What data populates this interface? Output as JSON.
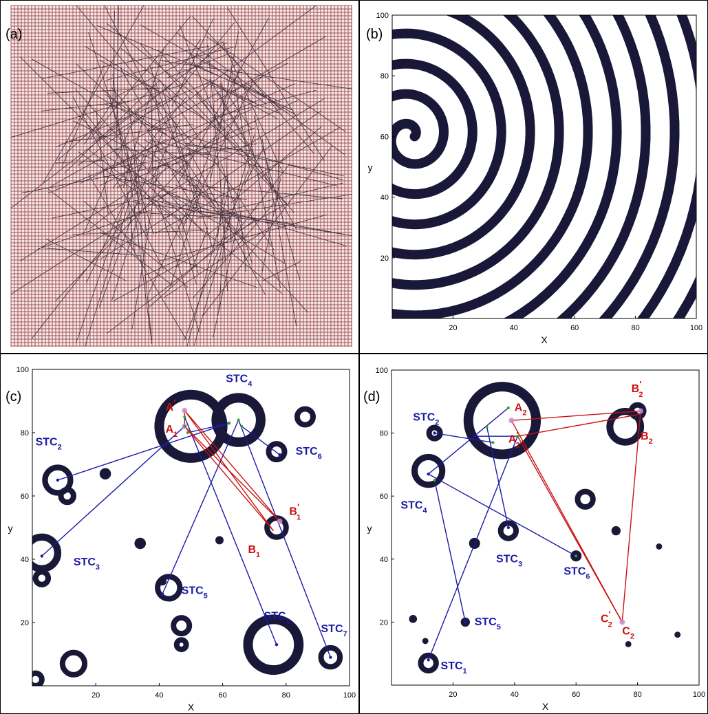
{
  "panels": {
    "a": {
      "label": "(a)"
    },
    "b": {
      "label": "(b)"
    },
    "c": {
      "label": "(c)"
    },
    "d": {
      "label": "(d)"
    }
  },
  "colors": {
    "lattice": "#8b1c1c",
    "pattern": "#1a1838",
    "stc_line": "#1a1aa8",
    "triangle": "#cc1111",
    "tip_trace": "#d08ad0",
    "marker": "#22aa22"
  },
  "chart_data": [
    {
      "panel": "a",
      "type": "network",
      "description_visible": "lattice with random long-range links",
      "grid": true
    },
    {
      "panel": "b",
      "type": "heatmap",
      "pattern": "spiral",
      "xlabel": "X",
      "ylabel": "y",
      "xlim": [
        0,
        100
      ],
      "ylim": [
        0,
        100
      ],
      "xticks": [
        20,
        40,
        60,
        80,
        100
      ],
      "yticks": [
        20,
        40,
        60,
        80,
        100
      ],
      "spiral_center": [
        6,
        60
      ]
    },
    {
      "panel": "c",
      "type": "scatter",
      "xlabel": "X",
      "ylabel": "y",
      "xlim": [
        0,
        100
      ],
      "ylim": [
        0,
        100
      ],
      "xticks": [
        20,
        40,
        60,
        80,
        100
      ],
      "yticks": [
        20,
        40,
        60,
        80,
        100
      ],
      "rings": [
        {
          "x": 50,
          "y": 82,
          "r": 10
        },
        {
          "x": 65,
          "y": 84,
          "r": 7
        },
        {
          "x": 76,
          "y": 13,
          "r": 8
        },
        {
          "x": 3,
          "y": 42,
          "r": 5
        },
        {
          "x": 8,
          "y": 65,
          "r": 4
        },
        {
          "x": 13,
          "y": 7,
          "r": 3.5
        },
        {
          "x": 43,
          "y": 31,
          "r": 3.5
        },
        {
          "x": 77,
          "y": 50,
          "r": 3
        },
        {
          "x": 94,
          "y": 9,
          "r": 3
        },
        {
          "x": 11,
          "y": 60,
          "r": 2
        },
        {
          "x": 47,
          "y": 19,
          "r": 2.5
        },
        {
          "x": 86,
          "y": 85,
          "r": 2.5
        },
        {
          "x": 77,
          "y": 74,
          "r": 2.5
        },
        {
          "x": 3,
          "y": 34,
          "r": 2
        },
        {
          "x": 47,
          "y": 13,
          "r": 1.5
        },
        {
          "x": 1,
          "y": 2,
          "r": 2
        }
      ],
      "blobs": [
        {
          "x": 23,
          "y": 67,
          "r": 1.8
        },
        {
          "x": 34,
          "y": 45,
          "r": 1.8
        },
        {
          "x": 59,
          "y": 46,
          "r": 1.3
        },
        {
          "x": 41,
          "y": 33,
          "r": 1.3
        }
      ],
      "stc_points": [
        {
          "name": "STC",
          "sub": "1",
          "x": 77,
          "y": 13
        },
        {
          "name": "STC",
          "sub": "2",
          "x": 8,
          "y": 65
        },
        {
          "name": "STC",
          "sub": "3",
          "x": 3,
          "y": 41
        },
        {
          "name": "STC",
          "sub": "4",
          "x": 62,
          "y": 83
        },
        {
          "name": "STC",
          "sub": "5",
          "x": 41,
          "y": 29
        },
        {
          "name": "STC",
          "sub": "6",
          "x": 78,
          "y": 73
        },
        {
          "name": "STC",
          "sub": "7",
          "x": 94,
          "y": 9
        }
      ],
      "stc_labels": [
        {
          "name": "STC",
          "sub": "1",
          "x": 73,
          "y": 21
        },
        {
          "name": "STC",
          "sub": "2",
          "x": 1,
          "y": 76
        },
        {
          "name": "STC",
          "sub": "3",
          "x": 13,
          "y": 38
        },
        {
          "name": "STC",
          "sub": "4",
          "x": 61,
          "y": 96
        },
        {
          "name": "STC",
          "sub": "5",
          "x": 47,
          "y": 29
        },
        {
          "name": "STC",
          "sub": "6",
          "x": 83,
          "y": 73
        },
        {
          "name": "STC",
          "sub": "7",
          "x": 91,
          "y": 17
        }
      ],
      "blue_links": [
        [
          {
            "x": 8,
            "y": 65
          },
          {
            "x": 62,
            "y": 83
          }
        ],
        [
          {
            "x": 3,
            "y": 41
          },
          {
            "x": 48,
            "y": 82
          }
        ],
        [
          {
            "x": 41,
            "y": 29
          },
          {
            "x": 65,
            "y": 84
          }
        ],
        [
          {
            "x": 77,
            "y": 13
          },
          {
            "x": 48,
            "y": 85
          }
        ],
        [
          {
            "x": 94,
            "y": 9
          },
          {
            "x": 65,
            "y": 84
          }
        ],
        [
          {
            "x": 78,
            "y": 73
          },
          {
            "x": 66,
            "y": 82
          }
        ],
        [
          {
            "x": 62,
            "y": 83
          },
          {
            "x": 49,
            "y": 80
          }
        ]
      ],
      "triangle": [
        {
          "x": 48,
          "y": 87
        },
        {
          "x": 78,
          "y": 52
        },
        {
          "x": 48,
          "y": 82
        }
      ],
      "triangle_extra": [
        [
          {
            "x": 48,
            "y": 87
          },
          {
            "x": 76,
            "y": 49
          }
        ],
        [
          {
            "x": 48,
            "y": 82
          },
          {
            "x": 76,
            "y": 49
          }
        ]
      ],
      "point_labels": [
        {
          "text": "A",
          "sup": "'",
          "sub": "",
          "x": 42,
          "y": 87
        },
        {
          "text": "A",
          "sup": "",
          "sub": "1",
          "x": 42,
          "y": 80
        },
        {
          "text": "B",
          "sup": "'",
          "sub": "1",
          "x": 81,
          "y": 54
        },
        {
          "text": "B",
          "sup": "",
          "sub": "1",
          "x": 68,
          "y": 42
        }
      ]
    },
    {
      "panel": "d",
      "type": "scatter",
      "xlabel": "X",
      "ylabel": "y",
      "xlim": [
        0,
        100
      ],
      "ylim": [
        0,
        100
      ],
      "xticks": [
        20,
        40,
        60,
        80,
        100
      ],
      "yticks": [
        20,
        40,
        60,
        80,
        100
      ],
      "rings": [
        {
          "x": 36,
          "y": 84,
          "r": 11
        },
        {
          "x": 76,
          "y": 82,
          "r": 5
        },
        {
          "x": 12,
          "y": 68,
          "r": 4.5
        },
        {
          "x": 38,
          "y": 49,
          "r": 2.5
        },
        {
          "x": 12,
          "y": 7,
          "r": 2.5
        },
        {
          "x": 63,
          "y": 59,
          "r": 2.5
        },
        {
          "x": 14,
          "y": 80,
          "r": 1.8
        },
        {
          "x": 80,
          "y": 87,
          "r": 2
        }
      ],
      "blobs": [
        {
          "x": 27,
          "y": 45,
          "r": 1.8
        },
        {
          "x": 24,
          "y": 20,
          "r": 1.5
        },
        {
          "x": 60,
          "y": 41,
          "r": 1.8
        },
        {
          "x": 73,
          "y": 49,
          "r": 1.5
        },
        {
          "x": 7,
          "y": 21,
          "r": 1.3
        },
        {
          "x": 11,
          "y": 14,
          "r": 1
        },
        {
          "x": 93,
          "y": 16,
          "r": 1
        },
        {
          "x": 77,
          "y": 13,
          "r": 1
        },
        {
          "x": 87,
          "y": 44,
          "r": 1
        }
      ],
      "stc_points": [
        {
          "name": "STC",
          "sub": "1",
          "x": 12,
          "y": 8
        },
        {
          "name": "STC",
          "sub": "2",
          "x": 14,
          "y": 80
        },
        {
          "name": "STC",
          "sub": "3",
          "x": 38,
          "y": 50
        },
        {
          "name": "STC",
          "sub": "4",
          "x": 12,
          "y": 67
        },
        {
          "name": "STC",
          "sub": "5",
          "x": 24,
          "y": 20
        },
        {
          "name": "STC",
          "sub": "6",
          "x": 60,
          "y": 41
        }
      ],
      "stc_labels": [
        {
          "name": "STC",
          "sub": "1",
          "x": 16,
          "y": 5
        },
        {
          "name": "STC",
          "sub": "2",
          "x": 7,
          "y": 84
        },
        {
          "name": "STC",
          "sub": "3",
          "x": 34,
          "y": 39
        },
        {
          "name": "STC",
          "sub": "4",
          "x": 3,
          "y": 56
        },
        {
          "name": "STC",
          "sub": "5",
          "x": 27,
          "y": 19
        },
        {
          "name": "STC",
          "sub": "6",
          "x": 56,
          "y": 35
        }
      ],
      "blue_links": [
        [
          {
            "x": 14,
            "y": 80
          },
          {
            "x": 33,
            "y": 77
          }
        ],
        [
          {
            "x": 12,
            "y": 67
          },
          {
            "x": 38,
            "y": 88
          }
        ],
        [
          {
            "x": 12,
            "y": 67
          },
          {
            "x": 60,
            "y": 41
          }
        ],
        [
          {
            "x": 12,
            "y": 8
          },
          {
            "x": 41,
            "y": 79
          }
        ],
        [
          {
            "x": 24,
            "y": 20
          },
          {
            "x": 14,
            "y": 65
          }
        ],
        [
          {
            "x": 38,
            "y": 50
          },
          {
            "x": 31,
            "y": 82
          }
        ],
        [
          {
            "x": 27,
            "y": 79
          },
          {
            "x": 41,
            "y": 79
          }
        ]
      ],
      "triangle": [
        {
          "x": 39,
          "y": 84
        },
        {
          "x": 81,
          "y": 87
        },
        {
          "x": 75,
          "y": 20
        }
      ],
      "triangle_extra": [
        [
          {
            "x": 41,
            "y": 79
          },
          {
            "x": 81,
            "y": 86
          }
        ],
        [
          {
            "x": 41,
            "y": 79
          },
          {
            "x": 75,
            "y": 20
          }
        ]
      ],
      "point_labels": [
        {
          "text": "A",
          "sup": "",
          "sub": "2",
          "x": 40,
          "y": 87
        },
        {
          "text": "A",
          "sup": "'",
          "sub": "2",
          "x": 38,
          "y": 77
        },
        {
          "text": "B",
          "sup": "'",
          "sub": "2",
          "x": 78,
          "y": 93
        },
        {
          "text": "B",
          "sup": "",
          "sub": "2",
          "x": 81,
          "y": 78
        },
        {
          "text": "C",
          "sup": "'",
          "sub": "2",
          "x": 68,
          "y": 20
        },
        {
          "text": "C",
          "sup": "",
          "sub": "2",
          "x": 75,
          "y": 16
        }
      ]
    }
  ]
}
